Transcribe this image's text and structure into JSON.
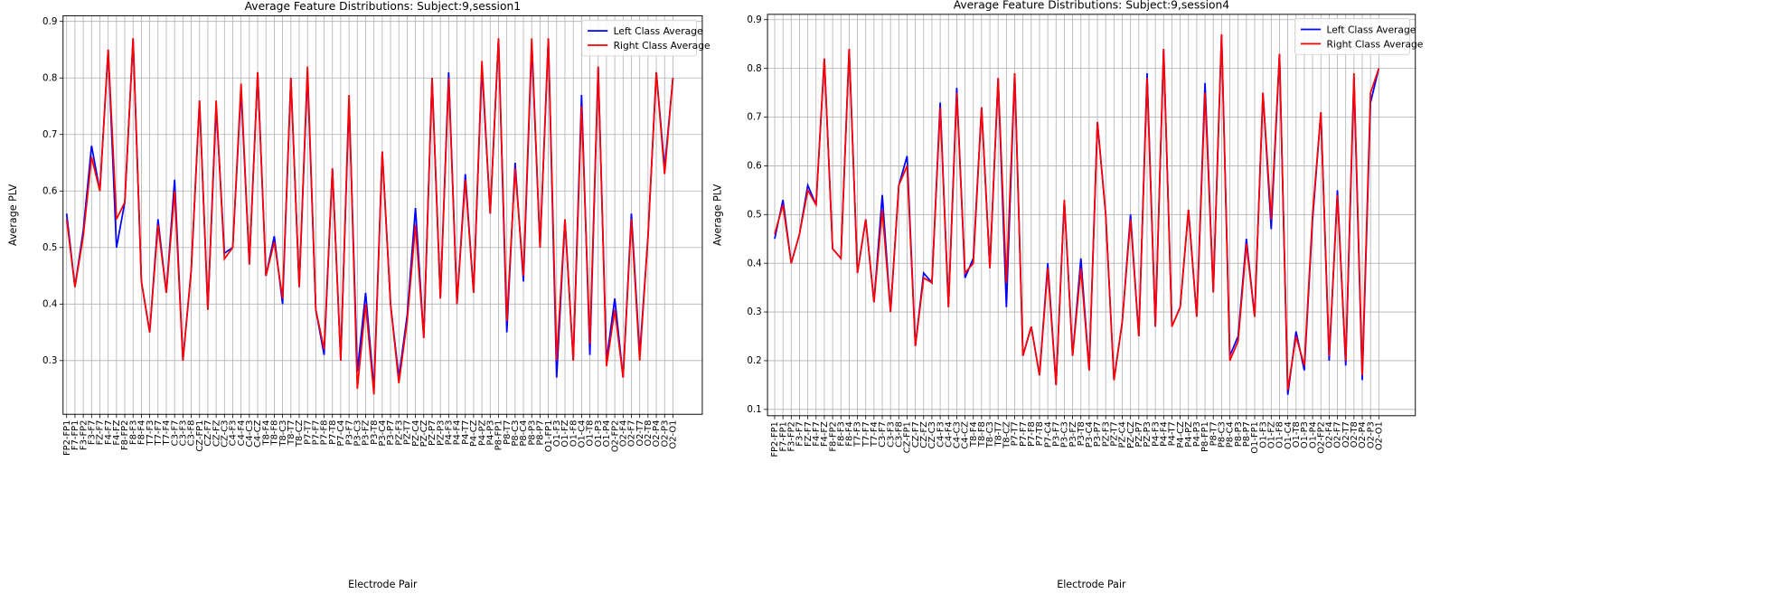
{
  "chart_data": [
    {
      "type": "line",
      "title": "Average Feature Distributions: Subject:9,session1",
      "xlabel": "Electrode Pair",
      "ylabel": "Average PLV",
      "categories": [
        "FP2-FP1",
        "F7-FP1",
        "F3-FP2",
        "F3-F7",
        "FZ-F7",
        "F4-F7",
        "F4-FZ",
        "F8-FP2",
        "F8-F3",
        "F8-F4",
        "T7-F3",
        "T7-F7",
        "T7-F4",
        "C3-F7",
        "C3-F3",
        "C3-F8",
        "CZ-FP1",
        "CZ-F7",
        "CZ-FZ",
        "CZ-C3",
        "C4-F3",
        "C4-F4",
        "C4-C3",
        "C4-CZ",
        "T8-F4",
        "T8-F8",
        "T8-C3",
        "T8-T7",
        "T8-CZ",
        "P7-T7",
        "P7-F7",
        "P7-F8",
        "P7-T8",
        "P7-C4",
        "P3-F7",
        "P3-C3",
        "P3-FZ",
        "P3-T8",
        "P3-C4",
        "P3-P7",
        "PZ-F3",
        "PZ-T7",
        "PZ-C4",
        "PZ-CZ",
        "PZ-P7",
        "PZ-P3",
        "P4-F3",
        "P4-F4",
        "P4-T7",
        "P4-CZ",
        "P4-PZ",
        "P4-P3",
        "P8-FP1",
        "P8-T7",
        "P8-C3",
        "P8-C4",
        "P8-P3",
        "P8-P7",
        "O1-FP1",
        "O1-F3",
        "O1-FZ",
        "O1-F8",
        "O1-C4",
        "O1-T8",
        "O1-P3",
        "O1-P4",
        "O2-FP2",
        "O2-F4",
        "O2-F7",
        "O2-T7",
        "O2-T8",
        "O2-P4",
        "O2-P3",
        "O2-O1"
      ],
      "series": [
        {
          "name": "Left Class Average",
          "color": "#0000ff",
          "values": [
            0.56,
            0.43,
            0.53,
            0.68,
            0.6,
            0.85,
            0.5,
            0.58,
            0.87,
            0.44,
            0.35,
            0.55,
            0.42,
            0.62,
            0.3,
            0.46,
            0.76,
            0.39,
            0.75,
            0.49,
            0.5,
            0.78,
            0.47,
            0.81,
            0.45,
            0.52,
            0.4,
            0.8,
            0.43,
            0.81,
            0.39,
            0.31,
            0.64,
            0.3,
            0.76,
            0.28,
            0.42,
            0.25,
            0.67,
            0.4,
            0.27,
            0.38,
            0.57,
            0.34,
            0.8,
            0.41,
            0.81,
            0.4,
            0.63,
            0.42,
            0.82,
            0.56,
            0.87,
            0.35,
            0.65,
            0.44,
            0.86,
            0.5,
            0.87,
            0.27,
            0.55,
            0.3,
            0.77,
            0.31,
            0.82,
            0.3,
            0.41,
            0.27,
            0.56,
            0.31,
            0.52,
            0.81,
            0.64,
            0.8
          ]
        },
        {
          "name": "Right Class Average",
          "color": "#ff0000",
          "values": [
            0.55,
            0.43,
            0.52,
            0.66,
            0.6,
            0.85,
            0.55,
            0.58,
            0.87,
            0.44,
            0.35,
            0.54,
            0.42,
            0.6,
            0.3,
            0.46,
            0.76,
            0.39,
            0.76,
            0.48,
            0.5,
            0.79,
            0.47,
            0.81,
            0.45,
            0.51,
            0.41,
            0.8,
            0.43,
            0.82,
            0.39,
            0.32,
            0.64,
            0.3,
            0.77,
            0.25,
            0.4,
            0.24,
            0.67,
            0.4,
            0.26,
            0.37,
            0.54,
            0.34,
            0.8,
            0.41,
            0.8,
            0.4,
            0.62,
            0.42,
            0.83,
            0.56,
            0.87,
            0.37,
            0.64,
            0.45,
            0.87,
            0.5,
            0.87,
            0.3,
            0.55,
            0.3,
            0.75,
            0.33,
            0.82,
            0.29,
            0.39,
            0.27,
            0.55,
            0.3,
            0.52,
            0.81,
            0.63,
            0.8
          ]
        }
      ],
      "ylim": [
        0.205,
        0.91
      ],
      "yticks": [
        0.3,
        0.4,
        0.5,
        0.6,
        0.7,
        0.8,
        0.9
      ],
      "grid": true,
      "legend": "upper right"
    },
    {
      "type": "line",
      "title": "Average Feature Distributions: Subject:9,session4",
      "xlabel": "Electrode Pair",
      "ylabel": "Average PLV",
      "categories": [
        "FP2-FP1",
        "F7-FP1",
        "F3-FP2",
        "F3-F7",
        "FZ-F7",
        "F4-F7",
        "F4-FZ",
        "F8-FP2",
        "F8-F3",
        "F8-F4",
        "T7-F3",
        "T7-F7",
        "T7-F4",
        "C3-F7",
        "C3-F3",
        "C3-F8",
        "CZ-FP1",
        "CZ-F7",
        "CZ-FZ",
        "CZ-C3",
        "C4-F3",
        "C4-F4",
        "C4-C3",
        "C4-CZ",
        "T8-F4",
        "T8-F8",
        "T8-C3",
        "T8-T7",
        "T8-CZ",
        "P7-T7",
        "P7-F7",
        "P7-F8",
        "P7-T8",
        "P7-C4",
        "P3-F7",
        "P3-C3",
        "P3-FZ",
        "P3-T8",
        "P3-C4",
        "P3-P7",
        "PZ-F3",
        "PZ-T7",
        "PZ-C4",
        "PZ-CZ",
        "PZ-P7",
        "PZ-P3",
        "P4-F3",
        "P4-F4",
        "P4-T7",
        "P4-CZ",
        "P4-PZ",
        "P4-P3",
        "P8-FP1",
        "P8-T7",
        "P8-C3",
        "P8-C4",
        "P8-P3",
        "P8-P7",
        "O1-FP1",
        "O1-F3",
        "O1-FZ",
        "O1-F8",
        "O1-C4",
        "O1-T8",
        "O1-P3",
        "O1-P4",
        "O2-FP2",
        "O2-F4",
        "O2-F7",
        "O2-T7",
        "O2-T8",
        "O2-P4",
        "O2-P3",
        "O2-O1"
      ],
      "series": [
        {
          "name": "Left Class Average",
          "color": "#0000ff",
          "values": [
            0.45,
            0.53,
            0.4,
            0.46,
            0.56,
            0.52,
            0.82,
            0.43,
            0.41,
            0.84,
            0.38,
            0.49,
            0.32,
            0.54,
            0.3,
            0.56,
            0.62,
            0.23,
            0.38,
            0.36,
            0.73,
            0.31,
            0.76,
            0.37,
            0.41,
            0.72,
            0.39,
            0.78,
            0.31,
            0.79,
            0.21,
            0.27,
            0.17,
            0.4,
            0.15,
            0.53,
            0.21,
            0.41,
            0.18,
            0.69,
            0.5,
            0.16,
            0.28,
            0.5,
            0.25,
            0.79,
            0.27,
            0.84,
            0.27,
            0.31,
            0.51,
            0.29,
            0.77,
            0.34,
            0.87,
            0.21,
            0.25,
            0.45,
            0.29,
            0.75,
            0.47,
            0.83,
            0.13,
            0.26,
            0.18,
            0.49,
            0.71,
            0.2,
            0.55,
            0.19,
            0.78,
            0.16,
            0.73,
            0.8
          ]
        },
        {
          "name": "Right Class Average",
          "color": "#ff0000",
          "values": [
            0.46,
            0.52,
            0.4,
            0.46,
            0.55,
            0.52,
            0.82,
            0.43,
            0.41,
            0.84,
            0.38,
            0.49,
            0.32,
            0.51,
            0.3,
            0.56,
            0.6,
            0.23,
            0.37,
            0.36,
            0.72,
            0.31,
            0.75,
            0.38,
            0.4,
            0.72,
            0.39,
            0.78,
            0.36,
            0.79,
            0.21,
            0.27,
            0.17,
            0.39,
            0.15,
            0.53,
            0.21,
            0.39,
            0.18,
            0.69,
            0.5,
            0.16,
            0.28,
            0.49,
            0.25,
            0.78,
            0.27,
            0.84,
            0.27,
            0.31,
            0.51,
            0.29,
            0.75,
            0.34,
            0.87,
            0.2,
            0.24,
            0.44,
            0.29,
            0.75,
            0.49,
            0.83,
            0.14,
            0.25,
            0.19,
            0.5,
            0.71,
            0.21,
            0.54,
            0.2,
            0.79,
            0.17,
            0.75,
            0.8
          ]
        }
      ],
      "ylim": [
        0.087,
        0.911
      ],
      "yticks": [
        0.1,
        0.2,
        0.3,
        0.4,
        0.5,
        0.6,
        0.7,
        0.8,
        0.9
      ],
      "grid": true,
      "legend": "upper right"
    }
  ]
}
